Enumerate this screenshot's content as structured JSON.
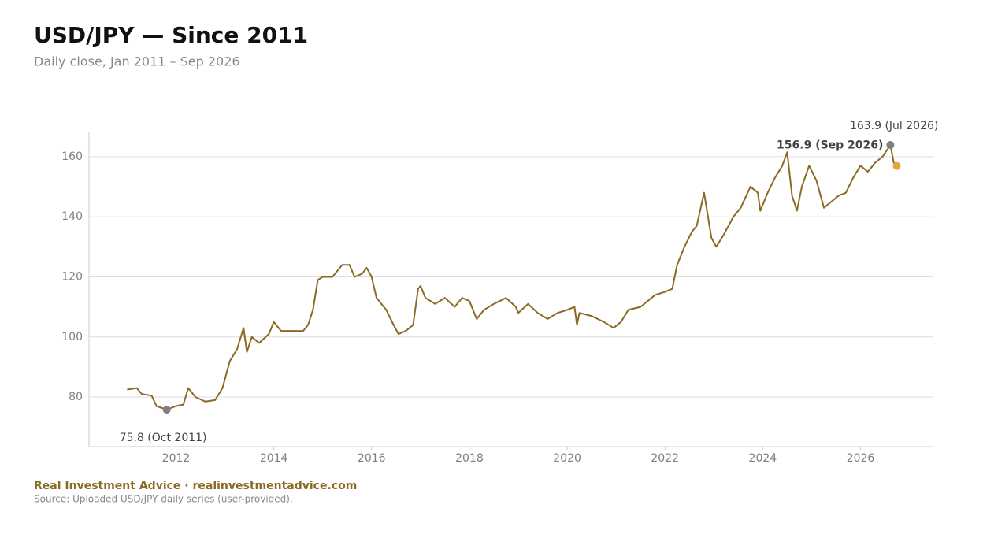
{
  "chart_data": {
    "type": "line",
    "title": "USD/JPY — Since 2011",
    "subtitle": "Daily close, Jan 2011 – Sep 2026",
    "footer_brand": "Real Investment Advice · realinvestmentadvice.com",
    "footer_source": "Source: Uploaded USD/JPY daily series (user-provided).",
    "xlim": [
      2010.22,
      2027.49
    ],
    "ylim": [
      63.5,
      168.1
    ],
    "xticks": [
      2012,
      2014,
      2016,
      2018,
      2020,
      2022,
      2024,
      2026
    ],
    "yticks": [
      80,
      100,
      120,
      140,
      160
    ],
    "grid": true,
    "series": [
      {
        "color": "#8b6a23",
        "x": [
          2011.0,
          2011.2,
          2011.3,
          2011.5,
          2011.6,
          2011.81,
          2012.0,
          2012.15,
          2012.25,
          2012.4,
          2012.6,
          2012.8,
          2012.95,
          2013.1,
          2013.25,
          2013.38,
          2013.45,
          2013.55,
          2013.7,
          2013.9,
          2014.0,
          2014.15,
          2014.4,
          2014.6,
          2014.7,
          2014.8,
          2014.9,
          2015.0,
          2015.2,
          2015.4,
          2015.55,
          2015.65,
          2015.8,
          2015.9,
          2016.0,
          2016.1,
          2016.3,
          2016.45,
          2016.55,
          2016.7,
          2016.85,
          2016.95,
          2017.0,
          2017.1,
          2017.3,
          2017.5,
          2017.7,
          2017.85,
          2018.0,
          2018.15,
          2018.3,
          2018.5,
          2018.75,
          2018.95,
          2019.0,
          2019.2,
          2019.4,
          2019.6,
          2019.8,
          2020.0,
          2020.15,
          2020.2,
          2020.25,
          2020.5,
          2020.75,
          2020.95,
          2021.1,
          2021.25,
          2021.5,
          2021.8,
          2022.0,
          2022.15,
          2022.25,
          2022.4,
          2022.55,
          2022.65,
          2022.8,
          2022.95,
          2023.05,
          2023.2,
          2023.4,
          2023.55,
          2023.75,
          2023.9,
          2023.95,
          2024.1,
          2024.25,
          2024.4,
          2024.5,
          2024.6,
          2024.7,
          2024.8,
          2024.95,
          2025.1,
          2025.25,
          2025.4,
          2025.55,
          2025.7,
          2025.85,
          2026.0,
          2026.15,
          2026.3,
          2026.45,
          2026.61,
          2026.68,
          2026.74
        ],
        "values": [
          82.5,
          83,
          81,
          80.5,
          77,
          75.8,
          77,
          77.5,
          83,
          80,
          78.5,
          79,
          83,
          92,
          96,
          103,
          95,
          100,
          98,
          101,
          105,
          102,
          102,
          102,
          104,
          109,
          119,
          120,
          120,
          124,
          124,
          120,
          121,
          123,
          120,
          113,
          109,
          104,
          101,
          102,
          104,
          116,
          117,
          113,
          111,
          113,
          110,
          113,
          112,
          106,
          109,
          111,
          113,
          110,
          108,
          111,
          108,
          106,
          108,
          109,
          110,
          104,
          108,
          107,
          105,
          103,
          105,
          109,
          110,
          114,
          115,
          116,
          124,
          130,
          135,
          137,
          148,
          133,
          130,
          134,
          140,
          143,
          150,
          148,
          142,
          148,
          153,
          157,
          161.5,
          147,
          142,
          150,
          157,
          152,
          143,
          145,
          147,
          148,
          153,
          157,
          155,
          158,
          160,
          163.9,
          158,
          156.9
        ]
      }
    ],
    "annotations": [
      {
        "x": 2011.81,
        "y": 75.8,
        "label": "75.8  (Oct 2011)",
        "color": "#808080"
      },
      {
        "x": 2026.61,
        "y": 163.9,
        "label": "163.9  (Jul 2026)",
        "color": "#808080"
      },
      {
        "x": 2026.74,
        "y": 156.9,
        "label": "156.9  (Sep 2026)",
        "color": "#e8a33d"
      }
    ]
  }
}
